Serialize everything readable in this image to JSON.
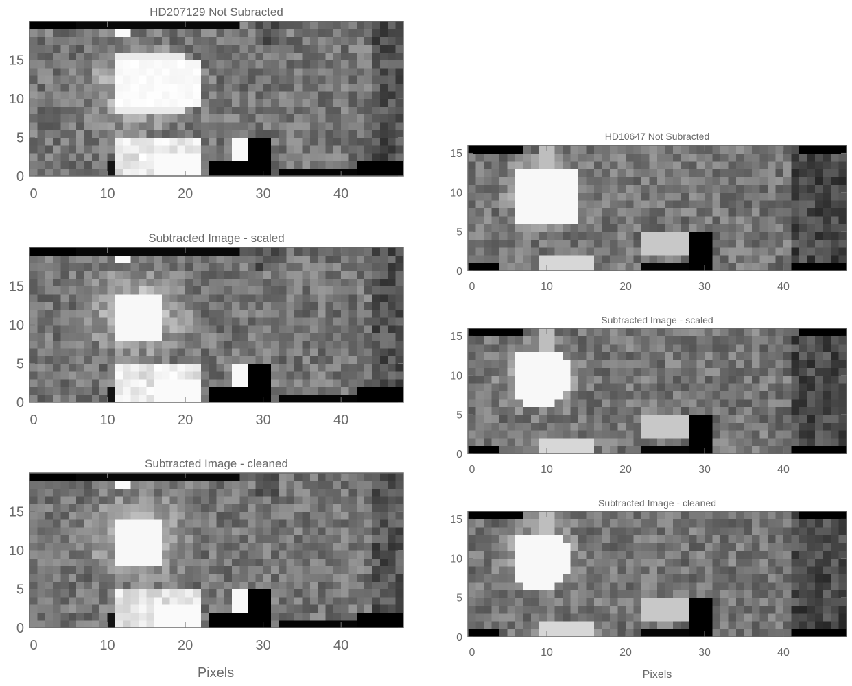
{
  "chart_data": [
    {
      "type": "heatmap",
      "title": "HD207129 Not Subracted",
      "xlabel": "",
      "xlim": [
        0,
        48
      ],
      "ylim": [
        0,
        20
      ],
      "xticks": [
        0,
        10,
        20,
        30,
        40
      ],
      "yticks": [
        0,
        5,
        10,
        15
      ],
      "grid": false,
      "colormap": "grayscale"
    },
    {
      "type": "heatmap",
      "title": "Subtracted Image - scaled",
      "xlabel": "",
      "xlim": [
        0,
        48
      ],
      "ylim": [
        0,
        20
      ],
      "xticks": [
        0,
        10,
        20,
        30,
        40
      ],
      "yticks": [
        0,
        5,
        10,
        15
      ],
      "grid": false,
      "colormap": "grayscale"
    },
    {
      "type": "heatmap",
      "title": "Subtracted Image - cleaned",
      "xlabel": "Pixels",
      "xlim": [
        0,
        48
      ],
      "ylim": [
        0,
        20
      ],
      "xticks": [
        0,
        10,
        20,
        30,
        40
      ],
      "yticks": [
        0,
        5,
        10,
        15
      ],
      "grid": false,
      "colormap": "grayscale"
    },
    {
      "type": "heatmap",
      "title": "HD10647 Not Subracted",
      "xlabel": "",
      "xlim": [
        0,
        48
      ],
      "ylim": [
        0,
        16
      ],
      "xticks": [
        0,
        10,
        20,
        30,
        40
      ],
      "yticks": [
        0,
        5,
        10,
        15
      ],
      "grid": false,
      "colormap": "grayscale"
    },
    {
      "type": "heatmap",
      "title": "Subtracted Image - scaled",
      "xlabel": "",
      "xlim": [
        0,
        48
      ],
      "ylim": [
        0,
        16
      ],
      "xticks": [
        0,
        10,
        20,
        30,
        40
      ],
      "yticks": [
        0,
        5,
        10,
        15
      ],
      "grid": false,
      "colormap": "grayscale"
    },
    {
      "type": "heatmap",
      "title": "Subtracted Image - cleaned",
      "xlabel": "Pixels",
      "xlim": [
        0,
        48
      ],
      "ylim": [
        0,
        16
      ],
      "xticks": [
        0,
        10,
        20,
        30,
        40
      ],
      "yticks": [
        0,
        5,
        10,
        15
      ],
      "grid": false,
      "colormap": "grayscale"
    }
  ]
}
